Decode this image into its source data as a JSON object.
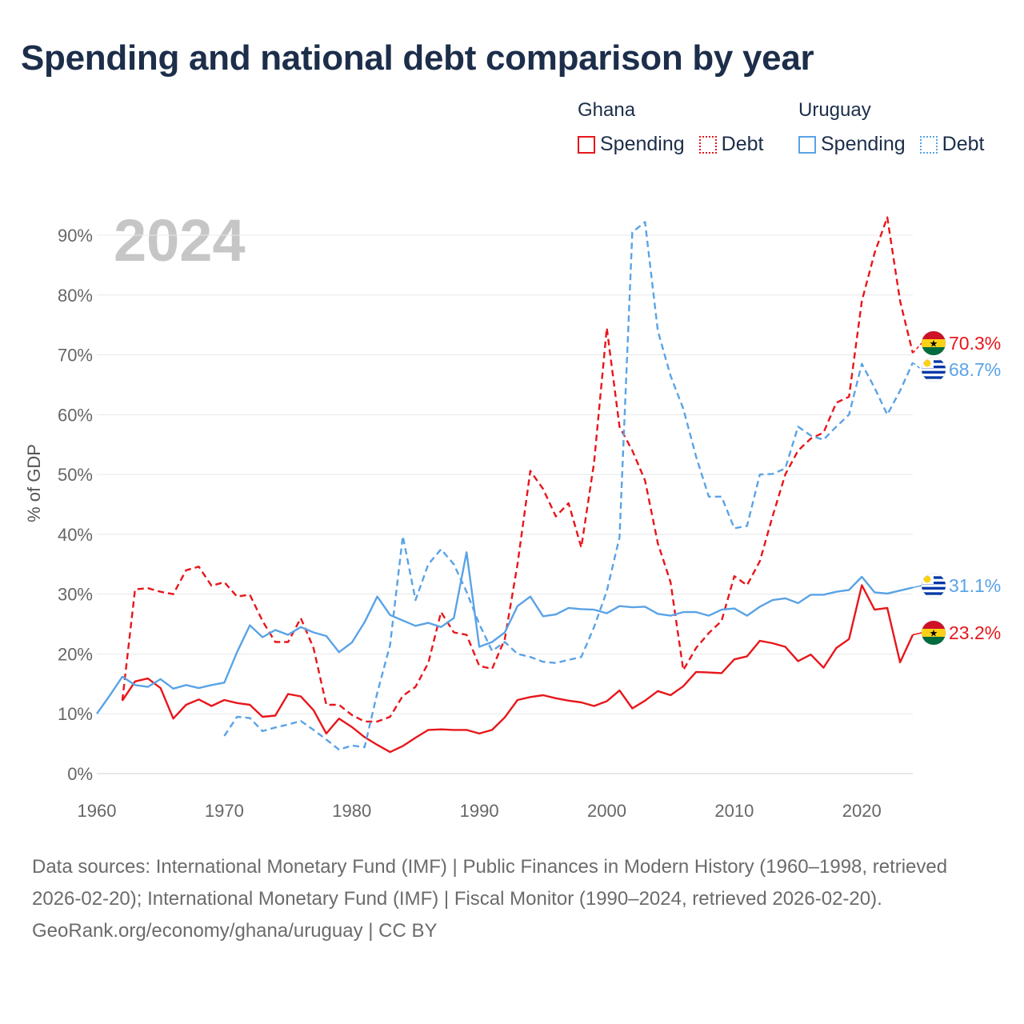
{
  "title": "Spending and national debt comparison by year",
  "year_label": "2024",
  "legend": {
    "groups": [
      {
        "country": "Ghana",
        "spending_label": "Spending",
        "debt_label": "Debt",
        "color": "#e8161b"
      },
      {
        "country": "Uruguay",
        "spending_label": "Spending",
        "debt_label": "Debt",
        "color": "#5aa3e6"
      }
    ]
  },
  "footer": {
    "sources": "Data sources: International Monetary Fund (IMF) | Public Finances in Modern History (1960–1998, retrieved 2026-02-20); International Monetary Fund (IMF) | Fiscal Monitor (1990–2024, retrieved 2026-02-20).",
    "credit": "GeoRank.org/economy/ghana/uruguay | CC BY"
  },
  "chart_data": {
    "type": "line",
    "ylabel": "% of GDP",
    "xlabel": "",
    "xlim": [
      1960,
      2024
    ],
    "ylim": [
      0,
      90
    ],
    "x_ticks": [
      1960,
      1970,
      1980,
      1990,
      2000,
      2010,
      2020
    ],
    "y_ticks": [
      0,
      10,
      20,
      30,
      40,
      50,
      60,
      70,
      80,
      90
    ],
    "y_tick_labels": [
      "0%",
      "10%",
      "20%",
      "30%",
      "40%",
      "50%",
      "60%",
      "70%",
      "80%",
      "90%"
    ],
    "grid": true,
    "series": [
      {
        "name": "Ghana Spending",
        "country": "Ghana",
        "flag": "ghana",
        "color": "#e8161b",
        "dash": "solid",
        "start_year": 1962,
        "values": [
          12.2,
          15.4,
          15.9,
          14.3,
          9.2,
          11.5,
          12.4,
          11.3,
          12.3,
          11.8,
          11.5,
          9.5,
          9.7,
          13.3,
          12.9,
          10.6,
          6.7,
          9.2,
          7.8,
          6.1,
          4.8,
          3.6,
          4.6,
          6.0,
          7.3,
          7.4,
          7.3,
          7.3,
          6.7,
          7.3,
          9.4,
          12.3,
          12.8,
          13.1,
          12.6,
          12.2,
          11.9,
          11.3,
          12.1,
          13.9,
          10.9,
          12.2,
          13.8,
          13.1,
          14.6,
          17.0,
          16.9,
          16.8,
          19.1,
          19.6,
          22.2,
          21.8,
          21.2,
          18.8,
          19.9,
          17.7,
          21.0,
          22.5,
          31.5,
          27.4,
          27.7,
          18.6,
          23.2
        ],
        "end_label": "23.2%"
      },
      {
        "name": "Ghana Debt",
        "country": "Ghana",
        "flag": "ghana",
        "color": "#e8161b",
        "dash": "dashed",
        "start_year": 1962,
        "values": [
          12.2,
          30.8,
          31.0,
          30.4,
          30.0,
          34.0,
          34.6,
          31.4,
          32.0,
          29.6,
          29.9,
          25.5,
          22.0,
          22.0,
          26.0,
          21.0,
          11.5,
          11.5,
          9.8,
          8.7,
          8.7,
          9.5,
          13.0,
          14.5,
          18.5,
          27.0,
          23.6,
          23.2,
          18.0,
          17.5,
          22.5,
          35.0,
          50.6,
          47.6,
          43.0,
          45.2,
          37.8,
          52.0,
          74.5,
          58.0,
          54.0,
          49.0,
          38.5,
          32.0,
          17.3,
          21.0,
          23.5,
          25.5,
          33.0,
          31.5,
          35.5,
          43.0,
          50.0,
          54.0,
          56.0,
          57.0,
          62.0,
          63.0,
          79.0,
          87.0,
          93.0,
          79.0,
          70.3
        ],
        "end_label": "70.3%"
      },
      {
        "name": "Uruguay Spending",
        "country": "Uruguay",
        "flag": "uruguay",
        "color": "#5aa3e6",
        "dash": "solid",
        "start_year": 1960,
        "values": [
          10.0,
          13.0,
          16.2,
          14.8,
          14.5,
          15.8,
          14.2,
          14.8,
          14.3,
          14.8,
          15.2,
          20.3,
          24.8,
          22.8,
          24.0,
          23.2,
          24.5,
          23.6,
          23.0,
          20.3,
          21.9,
          25.3,
          29.6,
          26.5,
          25.6,
          24.7,
          25.2,
          24.5,
          26.0,
          37.0,
          21.2,
          22.0,
          23.6,
          28.0,
          29.6,
          26.3,
          26.6,
          27.7,
          27.5,
          27.4,
          26.8,
          28.0,
          27.8,
          27.9,
          26.7,
          26.4,
          27.0,
          27.0,
          26.4,
          27.4,
          27.6,
          26.4,
          27.9,
          29.0,
          29.3,
          28.5,
          29.9,
          29.9,
          30.4,
          30.7,
          32.9,
          30.3,
          30.1,
          30.6,
          31.1
        ],
        "end_label": "31.1%"
      },
      {
        "name": "Uruguay Debt",
        "country": "Uruguay",
        "flag": "uruguay",
        "color": "#5aa3e6",
        "dash": "dashed",
        "start_year": 1970,
        "values": [
          6.3,
          9.5,
          9.3,
          7.1,
          7.7,
          8.2,
          8.8,
          7.3,
          5.7,
          4.0,
          4.7,
          4.4,
          13.5,
          21.5,
          39.7,
          29.0,
          35.0,
          37.5,
          35.0,
          30.4,
          25.0,
          20.5,
          22.0,
          20.0,
          19.5,
          18.7,
          18.5,
          19.0,
          19.5,
          24.5,
          30.5,
          39.5,
          90.5,
          92.2,
          74.0,
          66.5,
          61.0,
          53.0,
          46.3,
          46.3,
          41.0,
          41.4,
          50.0,
          50.1,
          51.0,
          58.0,
          56.5,
          55.8,
          58.0,
          60.0,
          68.5,
          64.5,
          60.0,
          64.0,
          68.7
        ],
        "end_label": "68.7%"
      }
    ]
  }
}
